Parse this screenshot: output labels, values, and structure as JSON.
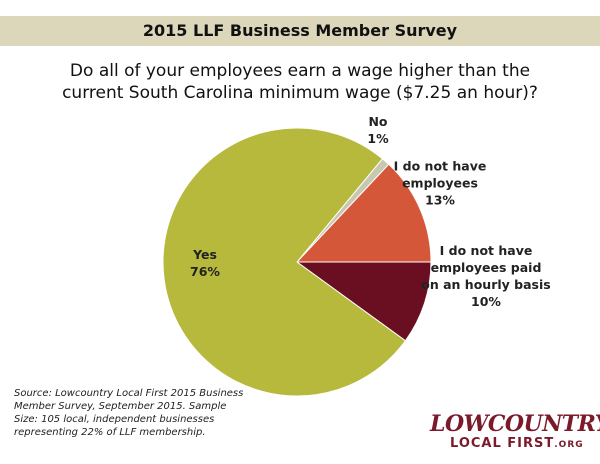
{
  "chart_data": {
    "type": "pie",
    "title": "2015 LLF Business Member Survey",
    "subtitle": "Do all of your employees earn a wage higher than the current South Carolina minimum wage ($7.25 an hour)?",
    "categories": [
      "No",
      "I do not have employees",
      "I do not have employees paid on an hourly basis",
      "Yes"
    ],
    "values": [
      1,
      13,
      10,
      76
    ],
    "value_labels": [
      "1%",
      "13%",
      "10%",
      "76%"
    ],
    "colors": [
      "#c8c8b0",
      "#d4573a",
      "#6a0f22",
      "#b6b93c"
    ],
    "source": "Source: Lowcountry Local First 2015 Business Member Survey, September 2015. Sample Size: 105 local, independent businesses representing 22% of LLF membership."
  },
  "logo": {
    "line1": "LOWCOUNTRY",
    "line2": "LOCAL FIRST",
    "suffix": ".ORG"
  }
}
